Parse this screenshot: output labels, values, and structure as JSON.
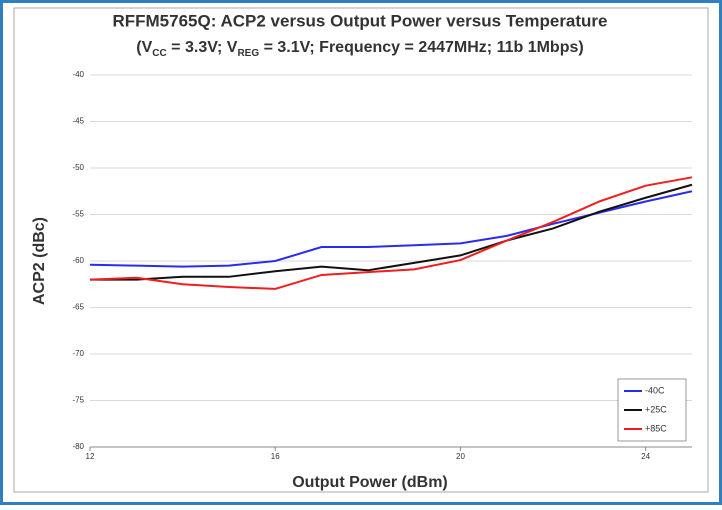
{
  "chart_data": {
    "type": "line",
    "title": "RFFM5765Q: ACP2 versus Output Power versus Temperature",
    "subtitle": [
      {
        "text": "(V"
      },
      {
        "text": "CC",
        "sub": true
      },
      {
        "text": " = 3.3V; V"
      },
      {
        "text": "REG",
        "sub": true
      },
      {
        "text": " = 3.1V; Frequency = 2447MHz; 11b 1Mbps)"
      }
    ],
    "x_label": "Output Power (dBm)",
    "y_label": "ACP2 (dBc)",
    "x": [
      12,
      13,
      14,
      15,
      16,
      17,
      18,
      19,
      20,
      21,
      22,
      23,
      24,
      25
    ],
    "series": [
      {
        "name": "-40C",
        "color": "#2b2bf0",
        "values": [
          -60.4,
          -60.5,
          -60.6,
          -60.5,
          -60,
          -58.5,
          -58.5,
          -58.3,
          -58.1,
          -57.3,
          -56,
          -54.8,
          -53.6,
          -52.5
        ]
      },
      {
        "name": "+25C",
        "color": "#111111",
        "values": [
          -62,
          -62,
          -61.7,
          -61.7,
          -61.1,
          -60.6,
          -61,
          -60.2,
          -59.4,
          -57.8,
          -56.5,
          -54.7,
          -53.2,
          -51.8
        ]
      },
      {
        "name": "+85C",
        "color": "#f01e1e",
        "values": [
          -62,
          -61.8,
          -62.5,
          -62.8,
          -63,
          -61.5,
          -61.2,
          -60.9,
          -59.9,
          -57.8,
          -55.8,
          -53.6,
          -51.9,
          -51
        ]
      }
    ],
    "xlim": [
      12,
      25
    ],
    "xticks": [
      12,
      16,
      20,
      24
    ],
    "ylim": [
      -80,
      -40
    ],
    "yticks": [
      -80,
      -75,
      -70,
      -65,
      -60,
      -55,
      -50,
      -45,
      -40
    ],
    "grid": true,
    "legend": "bottom-right"
  }
}
